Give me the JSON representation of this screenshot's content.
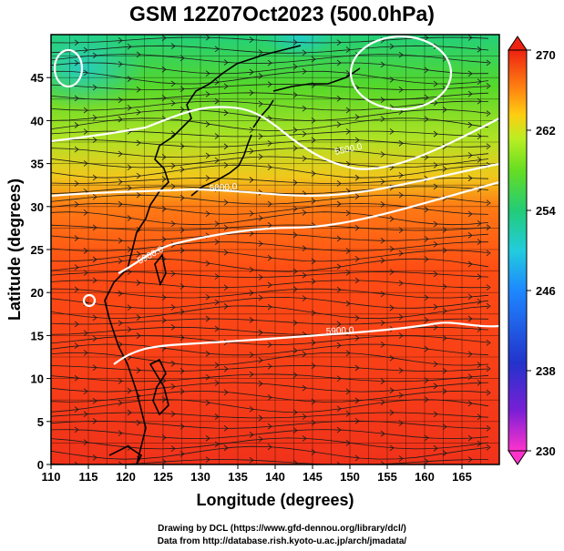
{
  "title": "GSM 12Z07Oct2023 (500.0hPa)",
  "map": {
    "xlabel": "Longitude (degrees)",
    "ylabel": "Latitude  (degrees)",
    "x_ticks": [
      "110",
      "115",
      "120",
      "125",
      "130",
      "135",
      "140",
      "145",
      "150",
      "155",
      "160",
      "165"
    ],
    "x_tick_values": [
      110,
      115,
      120,
      125,
      130,
      135,
      140,
      145,
      150,
      155,
      160,
      165
    ],
    "y_ticks": [
      "0",
      "5",
      "10",
      "15",
      "20",
      "25",
      "30",
      "35",
      "40",
      "45"
    ],
    "y_tick_values": [
      0,
      5,
      10,
      15,
      20,
      25,
      30,
      35,
      40,
      45
    ],
    "xlim": [
      110,
      170
    ],
    "ylim": [
      0,
      50
    ],
    "contour_labels": [
      "5500.0",
      "5800.0",
      "5900.0",
      "5900.0"
    ],
    "colorbar": {
      "tick_labels": [
        "270",
        "262",
        "254",
        "246",
        "238",
        "230"
      ],
      "tick_values": [
        270,
        262,
        254,
        246,
        238,
        230
      ],
      "range": [
        230,
        270
      ],
      "colors": [
        "#ff33cc",
        "#7a1fd6",
        "#2233cc",
        "#1e88ff",
        "#22ccdd",
        "#22cc77",
        "#66dd22",
        "#bbee22",
        "#ffcc11",
        "#ff8811",
        "#ff4411",
        "#ee2211"
      ]
    }
  },
  "credits": {
    "line1": "Drawing by DCL (https://www.gfd-dennou.org/library/dcl/)",
    "line2": "Data from http://database.rish.kyoto-u.ac.jp/arch/jmadata/"
  }
}
